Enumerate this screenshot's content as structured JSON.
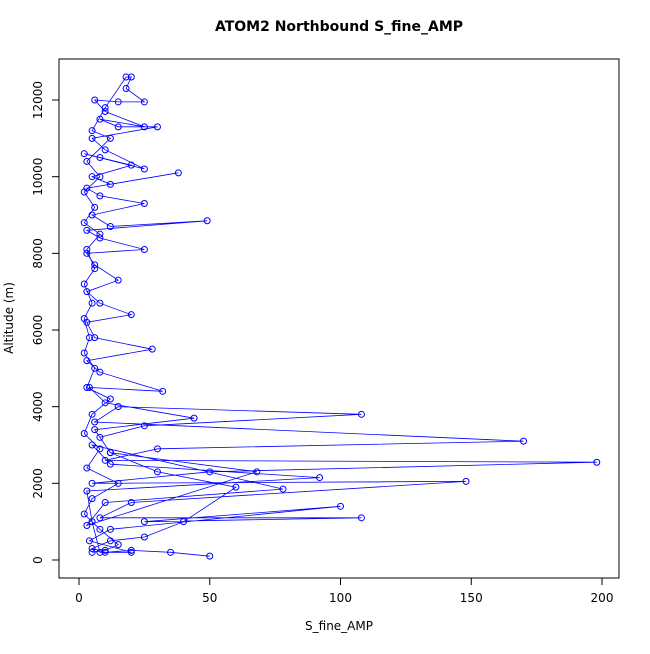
{
  "chart_data": {
    "type": "line",
    "title": "ATOM2 Northbound S_fine_AMP",
    "x_label": "S_fine_AMP",
    "y_label": "Altitude (m)",
    "x": [
      50,
      35,
      20,
      10,
      5,
      12,
      25,
      40,
      60,
      30,
      12,
      8,
      25,
      108,
      15,
      6,
      170,
      30,
      10,
      198,
      50,
      5,
      148,
      20,
      8,
      108,
      25,
      100,
      12,
      4,
      20,
      8,
      5,
      3,
      92,
      12,
      5,
      78,
      10,
      3,
      68,
      12,
      6,
      44,
      10,
      4,
      32,
      8,
      3,
      28,
      6,
      3,
      20,
      8,
      3,
      15,
      6,
      3,
      25,
      8,
      3,
      49,
      12,
      5,
      25,
      8,
      3,
      38,
      12,
      5,
      20,
      8,
      2,
      25,
      10,
      5,
      30,
      15,
      8,
      25,
      10,
      6,
      15,
      25,
      18,
      20,
      18,
      10,
      5,
      12,
      3,
      8,
      2,
      6,
      2,
      8,
      3,
      6,
      2,
      5,
      2,
      4,
      2,
      6,
      3,
      12,
      5,
      2,
      8,
      3,
      15,
      5,
      2,
      8,
      15,
      10,
      5
    ],
    "series": [
      {
        "name": "S_fine_AMP",
        "color": "#0000ff",
        "values": [
          100,
          200,
          250,
          200,
          300,
          500,
          600,
          1000,
          1900,
          2300,
          2800,
          3200,
          3500,
          3800,
          4000,
          3600,
          3100,
          2900,
          2600,
          2550,
          2300,
          2000,
          2050,
          1500,
          1100,
          1100,
          1000,
          1400,
          800,
          500,
          200,
          200,
          1000,
          1800,
          2150,
          2500,
          3000,
          1850,
          1500,
          900,
          2300,
          2800,
          3400,
          3700,
          4100,
          4500,
          4400,
          4900,
          5200,
          5500,
          5800,
          6200,
          6400,
          6700,
          7000,
          7300,
          7700,
          8000,
          8100,
          8400,
          8600,
          8850,
          8700,
          9000,
          9300,
          9500,
          9700,
          10100,
          9800,
          10000,
          10300,
          10500,
          10600,
          10200,
          10700,
          11000,
          11300,
          11300,
          11500,
          11300,
          11700,
          12000,
          11950,
          11950,
          12300,
          12600,
          12600,
          11800,
          11200,
          11000,
          10400,
          10000,
          9600,
          9200,
          8800,
          8500,
          8100,
          7600,
          7200,
          6700,
          6300,
          5800,
          5400,
          5000,
          4500,
          4200,
          3800,
          3300,
          2900,
          2400,
          2000,
          1600,
          1200,
          800,
          400,
          250,
          200
        ]
      }
    ],
    "xlim": [
      -7.65,
      206.5
    ],
    "xticks": [
      0,
      50,
      100,
      150,
      200
    ],
    "ylim": [
      -470,
      13070
    ],
    "yticks": [
      0,
      2000,
      4000,
      6000,
      8000,
      10000,
      12000
    ]
  }
}
